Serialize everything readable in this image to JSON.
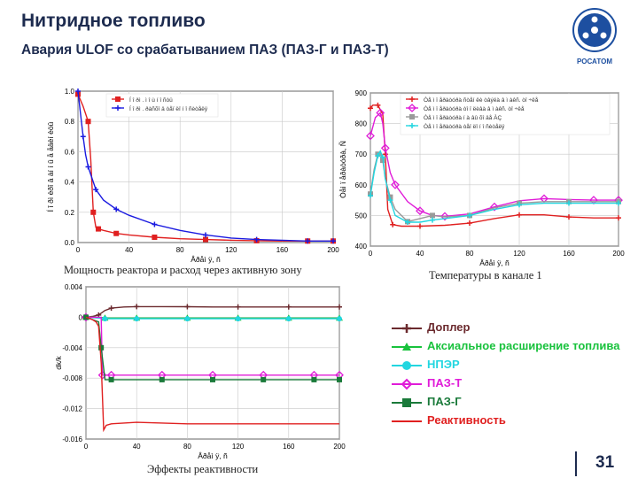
{
  "header": {
    "title": "Нитридное топливо",
    "subtitle": "Авария ULOF со срабатыванием ПАЗ (ПАЗ-Г и ПАЗ-Т)"
  },
  "logo": {
    "text": "РОСАТОМ",
    "color": "#1d4fa0"
  },
  "captions": {
    "power": "Мощность реактора и расход  через активную зону",
    "temps": "Температуры в канале 1",
    "reactivity": "Эффекты реактивности"
  },
  "page_number": "31",
  "legend": {
    "items": [
      {
        "label": "Доплер",
        "color": "#6b2a2e",
        "marker": "plus"
      },
      {
        "label": "Аксиальное расширение топлива",
        "color": "#18c23c",
        "marker": "triangle"
      },
      {
        "label": "НПЭР",
        "color": "#22d6e0",
        "marker": "circle"
      },
      {
        "label": "ПАЗ-Т",
        "color": "#e01cd8",
        "marker": "diamond"
      },
      {
        "label": "ПАЗ-Г",
        "color": "#1a7a3a",
        "marker": "square"
      },
      {
        "label": "Реактивность",
        "color": "#e02020",
        "marker": "none"
      }
    ]
  },
  "chart_data": [
    {
      "type": "line",
      "title": "Мощность реактора и расход  через активную зону",
      "xlabel": "Âðåì ÿ, ñ",
      "ylabel": "Í î ðì èðî â àí í û å åäèí èöû",
      "xlim": [
        0,
        200
      ],
      "ylim": [
        0,
        1.0
      ],
      "xticks": [
        0,
        40,
        80,
        120,
        160,
        200
      ],
      "yticks": [
        0,
        0.2,
        0.4,
        0.6,
        0.8,
        1.0
      ],
      "ytick_labels": [
        "0.0",
        "0.2",
        "0.4",
        "0.6",
        "0.8",
        "1.0"
      ],
      "legend_position": "top-right",
      "series": [
        {
          "name": "Í î ðì . ì î ù í î ñòü",
          "color": "#e02020",
          "marker": "square",
          "x": [
            0,
            4,
            8,
            10,
            12,
            14,
            16,
            20,
            30,
            40,
            60,
            80,
            100,
            120,
            140,
            160,
            180,
            200
          ],
          "y": [
            0.98,
            0.9,
            0.8,
            0.55,
            0.2,
            0.1,
            0.09,
            0.08,
            0.06,
            0.05,
            0.035,
            0.025,
            0.02,
            0.015,
            0.012,
            0.01,
            0.01,
            0.01
          ]
        },
        {
          "name": "Í î ðì . ðàñõî ä òåï ëî í î ñèòåëÿ",
          "color": "#1a1ae0",
          "marker": "plus",
          "x": [
            0,
            2,
            4,
            6,
            8,
            10,
            14,
            20,
            30,
            40,
            60,
            80,
            100,
            120,
            140,
            160,
            180,
            200
          ],
          "y": [
            1.0,
            0.85,
            0.7,
            0.58,
            0.5,
            0.45,
            0.35,
            0.28,
            0.22,
            0.18,
            0.12,
            0.08,
            0.05,
            0.03,
            0.02,
            0.015,
            0.01,
            0.01
          ]
        }
      ]
    },
    {
      "type": "line",
      "title": "Температуры в канале 1",
      "xlabel": "Âðåì ÿ, ñ",
      "ylabel": "Òåì ï åðàòóðà, Ñ",
      "xlim": [
        0,
        200
      ],
      "ylim": [
        400,
        900
      ],
      "xticks": [
        0,
        40,
        80,
        120,
        160,
        200
      ],
      "yticks": [
        400,
        500,
        600,
        700,
        800,
        900
      ],
      "legend_position": "top-right",
      "series": [
        {
          "name": "Òå ì ï åðàòóðà ñòåí êè òâýëà â ì àêñ. òî ÷êå",
          "color": "#e02020",
          "marker": "plus",
          "x": [
            0,
            2,
            6,
            10,
            12,
            14,
            18,
            25,
            40,
            60,
            80,
            100,
            120,
            140,
            160,
            180,
            200
          ],
          "y": [
            850,
            860,
            860,
            830,
            700,
            520,
            470,
            465,
            465,
            468,
            475,
            490,
            502,
            502,
            495,
            492,
            492
          ]
        },
        {
          "name": "Òå ì ï åðàòóðà òî ï ëèâà â ì àêñ. òî ÷êå",
          "color": "#e01cd8",
          "marker": "diamond",
          "x": [
            0,
            4,
            8,
            10,
            12,
            16,
            20,
            30,
            40,
            50,
            60,
            80,
            100,
            120,
            140,
            160,
            180,
            200
          ],
          "y": [
            760,
            820,
            835,
            800,
            720,
            640,
            600,
            545,
            515,
            500,
            497,
            505,
            528,
            548,
            555,
            552,
            550,
            550
          ]
        },
        {
          "name": "Òå ì ï åðàòóðà í à âû õî äå ÀÇ",
          "color": "#9a9a9a",
          "marker": "square",
          "x": [
            0,
            3,
            6,
            8,
            10,
            12,
            16,
            20,
            30,
            40,
            50,
            60,
            80,
            100,
            120,
            140,
            160,
            180,
            200
          ],
          "y": [
            570,
            650,
            700,
            705,
            680,
            620,
            560,
            520,
            480,
            490,
            500,
            495,
            500,
            525,
            540,
            545,
            545,
            545,
            545
          ]
        },
        {
          "name": "Òå ì ï åðàòóðà òåï ëî í î ñèòåëÿ",
          "color": "#22d6e0",
          "marker": "plus",
          "x": [
            0,
            3,
            6,
            8,
            10,
            12,
            16,
            20,
            30,
            40,
            50,
            60,
            80,
            100,
            120,
            140,
            160,
            180,
            200
          ],
          "y": [
            565,
            640,
            695,
            710,
            690,
            620,
            550,
            500,
            478,
            478,
            485,
            490,
            500,
            520,
            535,
            540,
            540,
            540,
            540
          ]
        }
      ]
    },
    {
      "type": "line",
      "title": "Эффекты реактивности",
      "xlabel": "Âðåì ÿ, ñ",
      "ylabel": "dk/k",
      "xlim": [
        0,
        200
      ],
      "ylim": [
        -0.016,
        0.004
      ],
      "xticks": [
        0,
        40,
        80,
        120,
        160,
        200
      ],
      "yticks": [
        -0.016,
        -0.012,
        -0.008,
        -0.004,
        0,
        0.004
      ],
      "ytick_labels": [
        "-0.016",
        "-0.012",
        "-0.008",
        "-0.004",
        "0",
        "0.004"
      ],
      "series": [
        {
          "name": "Доплер",
          "color": "#6b2a2e",
          "marker": "plus",
          "x": [
            0,
            5,
            10,
            15,
            20,
            30,
            40,
            60,
            80,
            100,
            120,
            140,
            160,
            180,
            200
          ],
          "y": [
            0,
            0.0001,
            0.0003,
            0.0009,
            0.0012,
            0.00135,
            0.0014,
            0.0014,
            0.00138,
            0.00135,
            0.00135,
            0.00135,
            0.00135,
            0.00135,
            0.00135
          ]
        },
        {
          "name": "Аксиальное расширение топлива",
          "color": "#18c23c",
          "marker": "triangle",
          "x": [
            0,
            10,
            15,
            20,
            40,
            60,
            80,
            100,
            120,
            140,
            160,
            180,
            200
          ],
          "y": [
            0,
            0,
            -0.0001,
            -0.0001,
            -0.0001,
            -0.0001,
            -0.0001,
            -0.0001,
            -0.0001,
            -0.0001,
            -0.0001,
            -0.0001,
            -0.0001
          ]
        },
        {
          "name": "НПЭР",
          "color": "#22d6e0",
          "marker": "circle",
          "x": [
            0,
            10,
            15,
            20,
            40,
            60,
            80,
            100,
            120,
            140,
            160,
            180,
            200
          ],
          "y": [
            0,
            -0.0001,
            -0.0002,
            -0.0002,
            -0.0002,
            -0.0002,
            -0.0002,
            -0.0002,
            -0.0002,
            -0.0002,
            -0.0002,
            -0.0002,
            -0.0002
          ]
        },
        {
          "name": "ПАЗ-Т",
          "color": "#e01cd8",
          "marker": "diamond",
          "x": [
            0,
            12,
            13,
            15,
            20,
            40,
            60,
            80,
            100,
            120,
            140,
            160,
            180,
            200
          ],
          "y": [
            0,
            0,
            -0.0076,
            -0.0076,
            -0.0076,
            -0.0076,
            -0.0076,
            -0.0076,
            -0.0076,
            -0.0076,
            -0.0076,
            -0.0076,
            -0.0076,
            -0.0076
          ]
        },
        {
          "name": "ПАЗ-Г",
          "color": "#1a7a3a",
          "marker": "square",
          "x": [
            0,
            10,
            12,
            15,
            20,
            40,
            60,
            80,
            100,
            120,
            140,
            160,
            180,
            200
          ],
          "y": [
            0,
            -0.0006,
            -0.004,
            -0.0082,
            -0.0082,
            -0.0082,
            -0.0082,
            -0.0082,
            -0.0082,
            -0.0082,
            -0.0082,
            -0.0082,
            -0.0082,
            -0.0082
          ]
        },
        {
          "name": "Реактивность",
          "color": "#e02020",
          "marker": "none",
          "x": [
            0,
            2,
            5,
            8,
            10,
            12,
            14,
            16,
            20,
            30,
            40,
            60,
            80,
            100,
            120,
            140,
            160,
            180,
            200
          ],
          "y": [
            0,
            -0.0001,
            -0.0003,
            -0.0006,
            -0.0012,
            -0.006,
            -0.0148,
            -0.0142,
            -0.014,
            -0.0139,
            -0.0138,
            -0.0139,
            -0.014,
            -0.014,
            -0.014,
            -0.014,
            -0.014,
            -0.014,
            -0.014
          ]
        }
      ]
    }
  ]
}
